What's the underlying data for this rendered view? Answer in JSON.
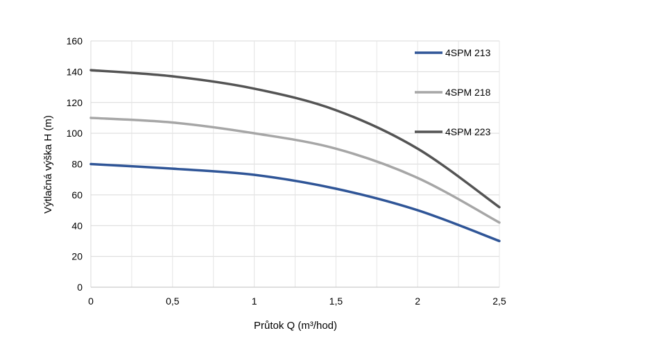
{
  "chart_data": {
    "type": "line",
    "title": "",
    "xlabel": "Průtok Q (m³/hod)",
    "ylabel": "Výtlačná výška H (m)",
    "xlim": [
      0,
      2.5
    ],
    "ylim": [
      0,
      160
    ],
    "x_ticks": [
      0,
      0.5,
      1,
      1.5,
      2,
      2.5
    ],
    "x_tick_labels": [
      "0",
      "0,5",
      "1",
      "1,5",
      "2",
      "2,5"
    ],
    "y_ticks": [
      0,
      20,
      40,
      60,
      80,
      100,
      120,
      140,
      160
    ],
    "y_tick_labels": [
      "0",
      "20",
      "40",
      "60",
      "80",
      "100",
      "120",
      "140",
      "160"
    ],
    "grid": true,
    "legend_position": "right",
    "x": [
      0,
      0.5,
      1,
      1.5,
      2,
      2.5
    ],
    "series": [
      {
        "name": "4SPM 213",
        "color": "#2F5597",
        "values": [
          80,
          77,
          73,
          64,
          50,
          30
        ]
      },
      {
        "name": "4SPM 218",
        "color": "#A6A6A6",
        "values": [
          110,
          107,
          100,
          90,
          71,
          42
        ]
      },
      {
        "name": "4SPM 223",
        "color": "#545454",
        "values": [
          141,
          137,
          129,
          115,
          90,
          52
        ]
      }
    ]
  }
}
